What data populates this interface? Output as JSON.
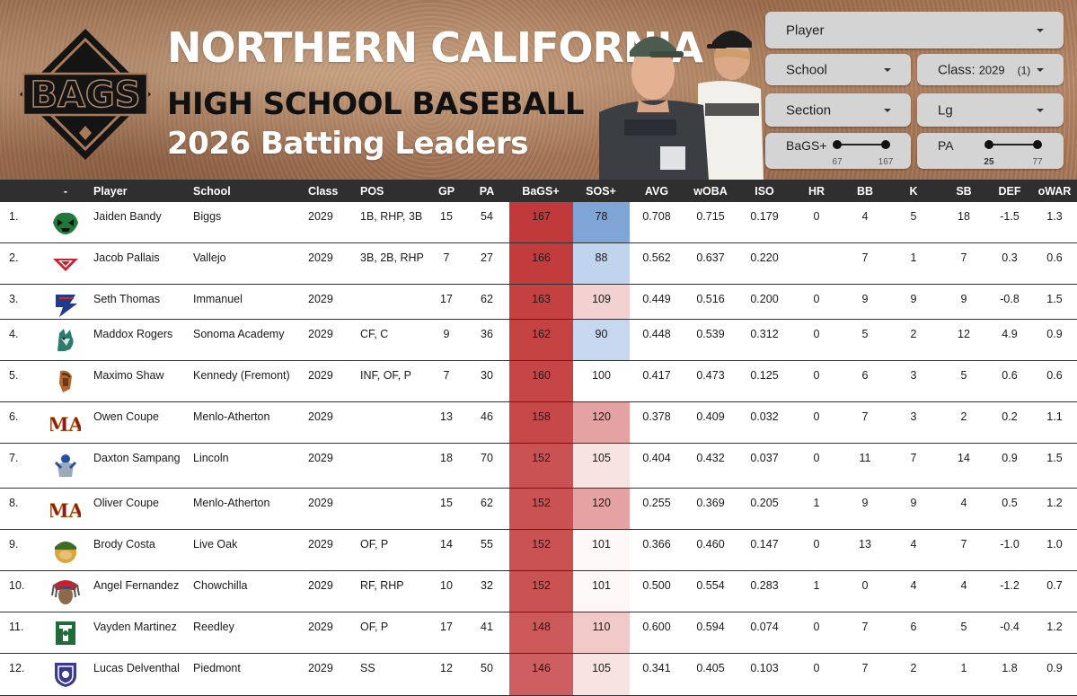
{
  "header": {
    "title_line1": "NORTHERN CALIFORNIA",
    "title_line2": "HIGH SCHOOL BASEBALL",
    "title_line3": "2026 Batting Leaders",
    "logo_text": "BAGS"
  },
  "filters": {
    "player": "Player",
    "school": "School",
    "class_label": "Class:",
    "class_value": "2029",
    "class_count": "(1)",
    "section": "Section",
    "lg": "Lg",
    "bags_slider": {
      "label": "BaGS+",
      "min": "67",
      "max": "167",
      "range_min": 67,
      "range_max": 167,
      "sel_min": 67,
      "sel_max": 167
    },
    "pa_slider": {
      "label": "PA",
      "min": "25",
      "max": "77",
      "range_min": 0,
      "range_max": 77,
      "sel_min": 25,
      "sel_max": 77
    }
  },
  "columns": [
    "-",
    "Player",
    "School",
    "Class",
    "POS",
    "GP",
    "PA",
    "BaGS+",
    "SOS+",
    "AVG",
    "wOBA",
    "ISO",
    "HR",
    "BB",
    "K",
    "SB",
    "DEF",
    "oWAR"
  ],
  "colors": {
    "header_bg": "#2f2f2f",
    "bags_strong": "#c1393a",
    "bags_mid": "#cc5656",
    "sos_blue_strong": "#7fa5d6",
    "sos_blue_light": "#c1d4ee"
  },
  "rows": [
    {
      "rank": "1.",
      "logo": "biggs-logo",
      "logo_color": "#1f7a3a",
      "player": "Jaiden Bandy",
      "school": "Biggs",
      "class": "2029",
      "pos": "1B, RHP, 3B",
      "gp": "15",
      "pa": "54",
      "bags": "167",
      "sos": "78",
      "avg": "0.708",
      "woba": "0.715",
      "iso": "0.179",
      "hr": "0",
      "bb": "4",
      "k": "5",
      "sb": "18",
      "def": "-1.5",
      "owar": "1.3",
      "bags_color": "#c1393a",
      "sos_color": "#7fa5d6"
    },
    {
      "rank": "2.",
      "logo": "vallejo-logo",
      "logo_color": "#c8202f",
      "player": "Jacob Pallais",
      "school": "Vallejo",
      "class": "2029",
      "pos": "3B, 2B, RHP",
      "gp": "7",
      "pa": "27",
      "bags": "166",
      "sos": "88",
      "avg": "0.562",
      "woba": "0.637",
      "iso": "0.220",
      "hr": "",
      "bb": "7",
      "k": "1",
      "sb": "7",
      "def": "0.3",
      "owar": "0.6",
      "bags_color": "#c33c3d",
      "sos_color": "#c1d4ee"
    },
    {
      "rank": "3.",
      "logo": "immanuel-logo",
      "logo_color": "#1f3c8a",
      "player": "Seth Thomas",
      "school": "Immanuel",
      "class": "2029",
      "pos": "",
      "gp": "17",
      "pa": "62",
      "bags": "163",
      "sos": "109",
      "avg": "0.449",
      "woba": "0.516",
      "iso": "0.200",
      "hr": "0",
      "bb": "9",
      "k": "9",
      "sb": "9",
      "def": "-0.8",
      "owar": "1.5",
      "bags_color": "#c44041",
      "sos_color": "#f3d1d1"
    },
    {
      "rank": "4.",
      "logo": "sonoma-academy-logo",
      "logo_color": "#2d7a6e",
      "player": "Maddox Rogers",
      "school": "Sonoma Academy",
      "class": "2029",
      "pos": "CF, C",
      "gp": "9",
      "pa": "36",
      "bags": "162",
      "sos": "90",
      "avg": "0.448",
      "woba": "0.539",
      "iso": "0.312",
      "hr": "0",
      "bb": "5",
      "k": "2",
      "sb": "12",
      "def": "4.9",
      "owar": "0.9",
      "bags_color": "#c54243",
      "sos_color": "#c6d7ef"
    },
    {
      "rank": "5.",
      "logo": "kennedy-logo",
      "logo_color": "#b5652d",
      "player": "Maximo Shaw",
      "school": "Kennedy (Fremont)",
      "class": "2029",
      "pos": "INF, OF, P",
      "gp": "7",
      "pa": "30",
      "bags": "160",
      "sos": "100",
      "avg": "0.417",
      "woba": "0.473",
      "iso": "0.125",
      "hr": "0",
      "bb": "6",
      "k": "3",
      "sb": "5",
      "def": "0.6",
      "owar": "0.6",
      "bags_color": "#c64546",
      "sos_color": "#ffffff"
    },
    {
      "rank": "6.",
      "logo": "menlo-atherton-logo",
      "logo_color": "#8a1c1c",
      "player": "Owen Coupe",
      "school": "Menlo-Atherton",
      "class": "2029",
      "pos": "",
      "gp": "13",
      "pa": "46",
      "bags": "158",
      "sos": "120",
      "avg": "0.378",
      "woba": "0.409",
      "iso": "0.032",
      "hr": "0",
      "bb": "7",
      "k": "3",
      "sb": "2",
      "def": "0.2",
      "owar": "1.1",
      "bags_color": "#c74849",
      "sos_color": "#e4a2a2"
    },
    {
      "rank": "7.",
      "logo": "lincoln-logo",
      "logo_color": "#2a4f9c",
      "player": "Daxton Sampang",
      "school": "Lincoln",
      "class": "2029",
      "pos": "",
      "gp": "18",
      "pa": "70",
      "bags": "152",
      "sos": "105",
      "avg": "0.404",
      "woba": "0.432",
      "iso": "0.037",
      "hr": "0",
      "bb": "11",
      "k": "7",
      "sb": "14",
      "def": "0.9",
      "owar": "1.5",
      "bags_color": "#cb5253",
      "sos_color": "#f8e3e3"
    },
    {
      "rank": "8.",
      "logo": "menlo-atherton-logo",
      "logo_color": "#8a1c1c",
      "player": "Oliver Coupe",
      "school": "Menlo-Atherton",
      "class": "2029",
      "pos": "",
      "gp": "15",
      "pa": "62",
      "bags": "152",
      "sos": "120",
      "avg": "0.255",
      "woba": "0.369",
      "iso": "0.205",
      "hr": "1",
      "bb": "9",
      "k": "9",
      "sb": "4",
      "def": "0.5",
      "owar": "1.2",
      "bags_color": "#cb5253",
      "sos_color": "#e4a2a2"
    },
    {
      "rank": "9.",
      "logo": "live-oak-logo",
      "logo_color": "#3b6e2a",
      "player": "Brody Costa",
      "school": "Live Oak",
      "class": "2029",
      "pos": "OF, P",
      "gp": "14",
      "pa": "55",
      "bags": "152",
      "sos": "101",
      "avg": "0.366",
      "woba": "0.460",
      "iso": "0.147",
      "hr": "0",
      "bb": "13",
      "k": "4",
      "sb": "7",
      "def": "-1.0",
      "owar": "1.0",
      "bags_color": "#cb5253",
      "sos_color": "#fdf7f7"
    },
    {
      "rank": "10.",
      "logo": "chowchilla-logo",
      "logo_color": "#5a5a5a",
      "player": "Angel Fernandez",
      "school": "Chowchilla",
      "class": "2029",
      "pos": "RF, RHP",
      "gp": "10",
      "pa": "32",
      "bags": "152",
      "sos": "101",
      "avg": "0.500",
      "woba": "0.554",
      "iso": "0.283",
      "hr": "1",
      "bb": "0",
      "k": "4",
      "sb": "4",
      "def": "-1.2",
      "owar": "0.7",
      "bags_color": "#cb5253",
      "sos_color": "#fdf7f7"
    },
    {
      "rank": "11.",
      "logo": "reedley-logo",
      "logo_color": "#1f6b3a",
      "player": "Vayden Martinez",
      "school": "Reedley",
      "class": "2029",
      "pos": "OF, P",
      "gp": "17",
      "pa": "41",
      "bags": "148",
      "sos": "110",
      "avg": "0.600",
      "woba": "0.594",
      "iso": "0.074",
      "hr": "0",
      "bb": "7",
      "k": "6",
      "sb": "5",
      "def": "-0.4",
      "owar": "1.2",
      "bags_color": "#cd5a5b",
      "sos_color": "#f1c9c9"
    },
    {
      "rank": "12.",
      "logo": "piedmont-logo",
      "logo_color": "#3a3a8c",
      "player": "Lucas Delventhal",
      "school": "Piedmont",
      "class": "2029",
      "pos": "SS",
      "gp": "12",
      "pa": "50",
      "bags": "146",
      "sos": "105",
      "avg": "0.341",
      "woba": "0.405",
      "iso": "0.103",
      "hr": "0",
      "bb": "7",
      "k": "2",
      "sb": "1",
      "def": "1.8",
      "owar": "0.9",
      "bags_color": "#ce5e5f",
      "sos_color": "#f8e3e3"
    }
  ]
}
